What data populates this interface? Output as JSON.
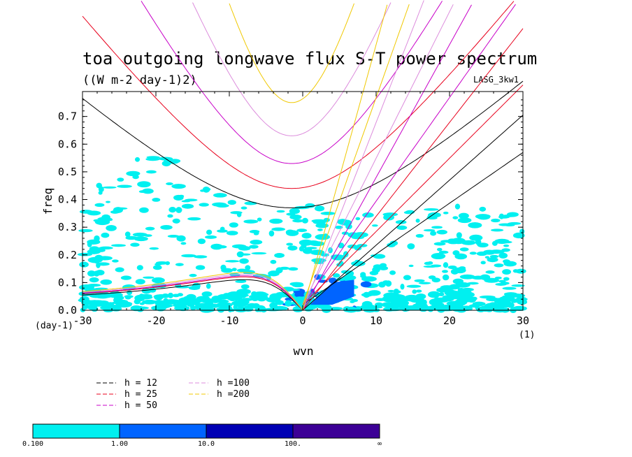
{
  "chart_data": {
    "type": "line",
    "title": "toa outgoing longwave flux S-T power spectrum",
    "subtitle": "((W m-2 day-1)2)",
    "label": "LASG_3kw1",
    "xlabel": "wvn",
    "ylabel": "freq",
    "x_unit": "(1)",
    "y_unit": "(day-1)",
    "xlim": [
      -30,
      30
    ],
    "ylim": [
      0,
      0.79
    ],
    "x_ticks": [
      -30,
      -20,
      -10,
      0,
      10,
      20,
      30
    ],
    "x_tick_labels": [
      "-30",
      "-20",
      "-10",
      "0",
      "10",
      "20",
      "30"
    ],
    "y_ticks": [
      0,
      0.1,
      0.2,
      0.3,
      0.4,
      0.5,
      0.6,
      0.7
    ],
    "y_tick_labels": [
      "0.0",
      "0.1",
      "0.2",
      "0.3",
      "0.4",
      "0.5",
      "0.6",
      "0.7"
    ],
    "dispersion_curves": [
      {
        "h": 12,
        "label": "h = 12",
        "color": "#000000",
        "inertia_gravity_min_freq": 0.37,
        "rossby_freq_at_minus30": 0.055
      },
      {
        "h": 25,
        "label": "h = 25",
        "color": "#e8001c",
        "inertia_gravity_min_freq": 0.44,
        "rossby_freq_at_minus30": 0.06
      },
      {
        "h": 50,
        "label": "h = 50",
        "color": "#c800c8",
        "inertia_gravity_min_freq": 0.53,
        "rossby_freq_at_minus30": 0.062
      },
      {
        "h": 100,
        "label": "h =100",
        "color": "#dc8cdc",
        "inertia_gravity_min_freq": 0.63,
        "rossby_freq_at_minus30": 0.065
      },
      {
        "h": 200,
        "label": "h =200",
        "color": "#f0c800",
        "inertia_gravity_min_freq": 0.75,
        "rossby_freq_at_minus30": 0.068
      }
    ],
    "colorbar": {
      "colors": [
        "#00f0f0",
        "#0064ff",
        "#0000b4",
        "#3c0096"
      ],
      "labels": [
        "0.100",
        "1.00",
        "10.0",
        "100.",
        "∞"
      ]
    }
  }
}
